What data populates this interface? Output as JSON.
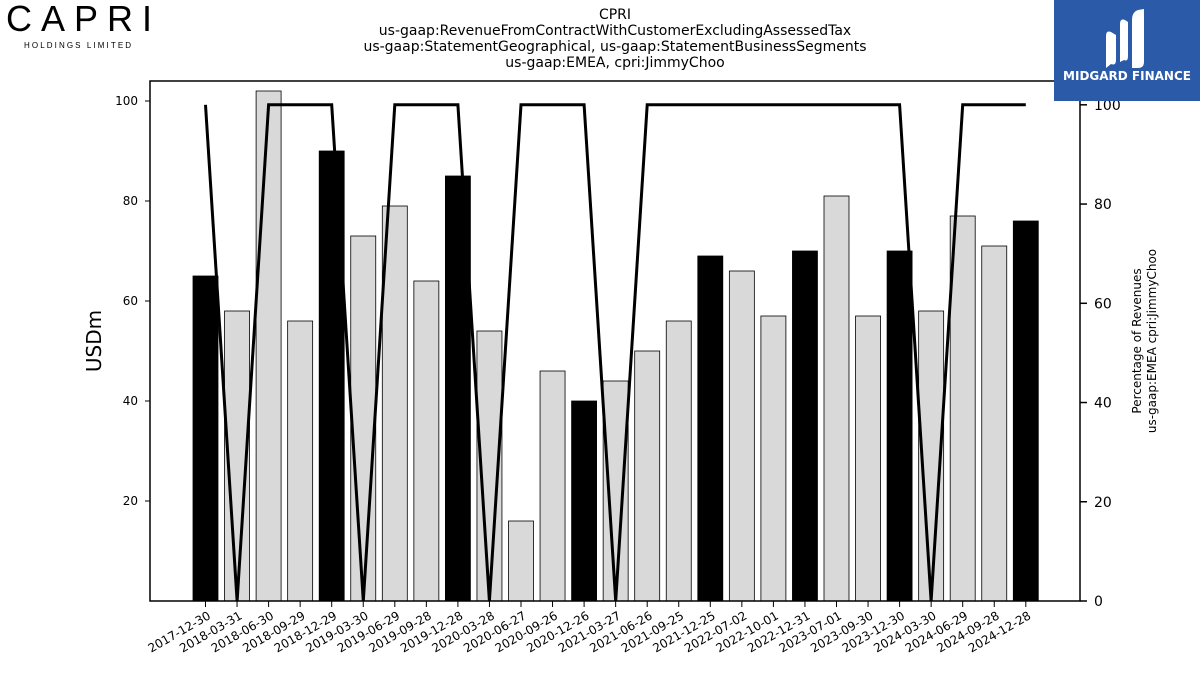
{
  "logo": {
    "name": "CAPRI",
    "subtitle": "HOLDINGS LIMITED"
  },
  "brand": {
    "name": "MIDGARD FINANCE",
    "color": "#2b5aa8"
  },
  "chart_data": {
    "type": "bar",
    "title": "CPRI",
    "subtitle_lines": [
      "us-gaap:RevenueFromContractWithCustomerExcludingAssessedTax",
      "us-gaap:StatementGeographical, us-gaap:StatementBusinessSegments",
      "us-gaap:EMEA, cpri:JimmyChoo"
    ],
    "ylabel": "USDm",
    "ylabel_right": [
      "Percentage of Revenues",
      "us-gaap:EMEA cpri:JimmyChoo"
    ],
    "ylim": [
      0,
      104
    ],
    "ylim_right": [
      0,
      104.8
    ],
    "yticks": [
      20,
      40,
      60,
      80,
      100
    ],
    "yticks_right": [
      0,
      20,
      40,
      60,
      80,
      100
    ],
    "categories": [
      "2017-12-30",
      "2018-03-31",
      "2018-06-30",
      "2018-09-29",
      "2018-12-29",
      "2019-03-30",
      "2019-06-29",
      "2019-09-28",
      "2019-12-28",
      "2020-03-28",
      "2020-06-27",
      "2020-09-26",
      "2020-12-26",
      "2021-03-27",
      "2021-06-26",
      "2021-09-25",
      "2021-12-25",
      "2022-07-02",
      "2022-10-01",
      "2022-12-31",
      "2023-07-01",
      "2023-09-30",
      "2023-12-30",
      "2024-03-30",
      "2024-06-29",
      "2024-09-28",
      "2024-12-28"
    ],
    "series": [
      {
        "type": "bar",
        "values": [
          65,
          58,
          102,
          56,
          90,
          73,
          79,
          64,
          85,
          54,
          16,
          46,
          40,
          44,
          50,
          56,
          69,
          66,
          57,
          70,
          81,
          57,
          70,
          58,
          77,
          71,
          76
        ],
        "highlight": [
          true,
          false,
          false,
          false,
          true,
          false,
          false,
          false,
          true,
          false,
          false,
          false,
          true,
          false,
          false,
          false,
          true,
          false,
          false,
          true,
          false,
          false,
          true,
          false,
          false,
          false,
          true
        ],
        "highlight_color": "#000000",
        "color": "#d9d9d9"
      },
      {
        "type": "line",
        "axis": "right",
        "values": [
          100,
          0,
          100,
          100,
          100,
          0,
          100,
          100,
          100,
          0,
          100,
          100,
          100,
          0,
          100,
          100,
          100,
          100,
          100,
          100,
          100,
          100,
          100,
          0,
          100,
          100,
          100
        ],
        "color": "#000000"
      }
    ],
    "grid": false
  }
}
